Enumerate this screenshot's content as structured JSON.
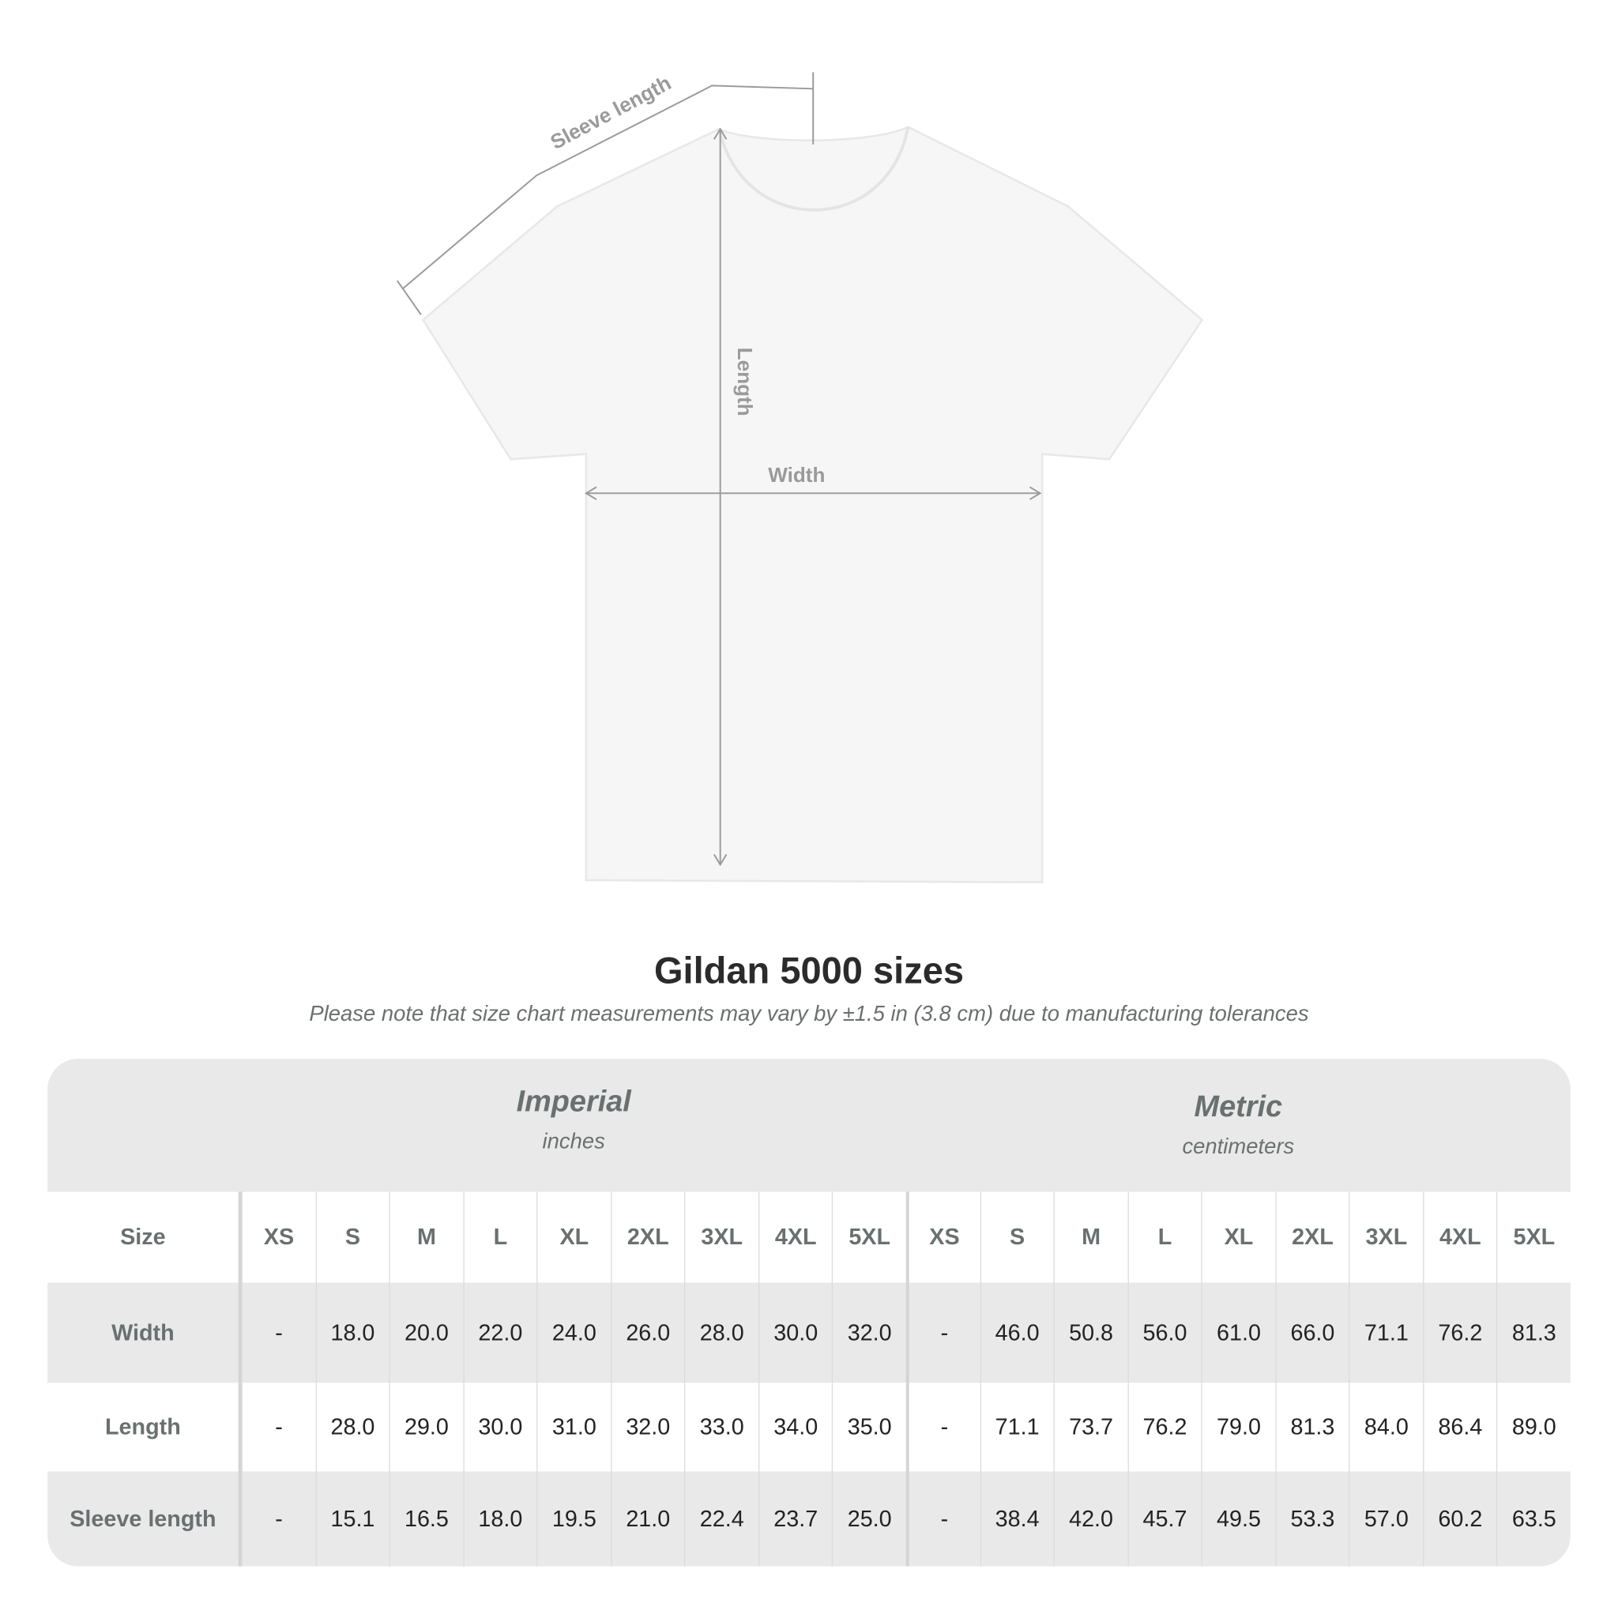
{
  "diagram": {
    "labels": {
      "sleeve": "Sleeve length",
      "length": "Length",
      "width": "Width"
    }
  },
  "title": "Gildan 5000 sizes",
  "note": "Please note that size chart measurements may vary by ±1.5 in (3.8 cm) due to manufacturing tolerances",
  "table": {
    "imperial": {
      "title": "Imperial",
      "unit": "inches"
    },
    "metric": {
      "title": "Metric",
      "unit": "centimeters"
    },
    "size_label": "Size",
    "sizes": [
      "XS",
      "S",
      "M",
      "L",
      "XL",
      "2XL",
      "3XL",
      "4XL",
      "5XL"
    ],
    "rows": [
      {
        "label": "Width",
        "imperial": [
          "-",
          "18.0",
          "20.0",
          "22.0",
          "24.0",
          "26.0",
          "28.0",
          "30.0",
          "32.0"
        ],
        "metric": [
          "-",
          "46.0",
          "50.8",
          "56.0",
          "61.0",
          "66.0",
          "71.1",
          "76.2",
          "81.3"
        ]
      },
      {
        "label": "Length",
        "imperial": [
          "-",
          "28.0",
          "29.0",
          "30.0",
          "31.0",
          "32.0",
          "33.0",
          "34.0",
          "35.0"
        ],
        "metric": [
          "-",
          "71.1",
          "73.7",
          "76.2",
          "79.0",
          "81.3",
          "84.0",
          "86.4",
          "89.0"
        ]
      },
      {
        "label": "Sleeve length",
        "imperial": [
          "-",
          "15.1",
          "16.5",
          "18.0",
          "19.5",
          "21.0",
          "22.4",
          "23.7",
          "25.0"
        ],
        "metric": [
          "-",
          "38.4",
          "42.0",
          "45.7",
          "49.5",
          "53.3",
          "57.0",
          "60.2",
          "63.5"
        ]
      }
    ]
  }
}
